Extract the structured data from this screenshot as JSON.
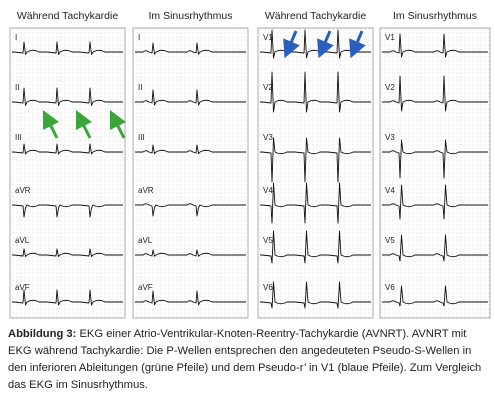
{
  "panels": [
    {
      "heading": "Während Tachykardie",
      "leads": [
        "I",
        "II",
        "III",
        "aVR",
        "aVL",
        "aVF"
      ]
    },
    {
      "heading": "Im Sinusrhythmus",
      "leads": [
        "I",
        "II",
        "III",
        "aVR",
        "aVL",
        "aVF"
      ]
    },
    {
      "heading": "Während Tachykardie",
      "leads": [
        "V1",
        "V2",
        "V3",
        "V4",
        "V5",
        "V6"
      ]
    },
    {
      "heading": "Im Sinusrhythmus",
      "leads": [
        "V1",
        "V2",
        "V3",
        "V4",
        "V5",
        "V6"
      ]
    }
  ],
  "caption": {
    "label": "Abbildung 3:",
    "text": "EKG einer Atrio-Ventrikular-Knoten-Reentry-Tachykardie (AVNRT). AVNRT mit EKG während Tachykardie: Die P-Wellen entsprechen den angedeuteten Pseudo-S-Wellen in den inferioren Ableitungen (grüne Pfeile) und dem Pseudo-r’ in V1 (blaue Pfeile). Zum Vergleich das EKG im Sinusrhythmus."
  }
}
